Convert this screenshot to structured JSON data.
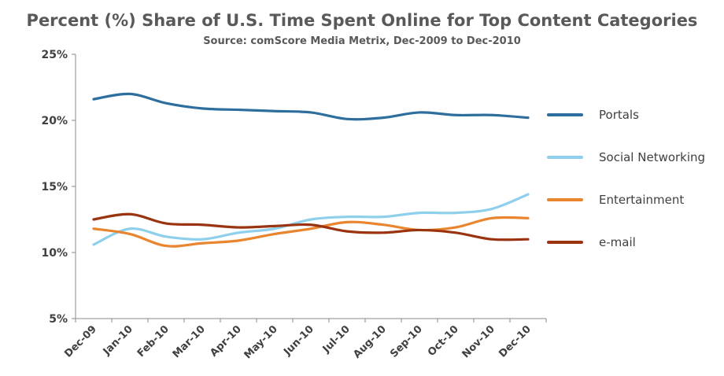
{
  "chart_data": {
    "type": "line",
    "title": "Percent (%) Share of U.S. Time Spent Online for Top Content Categories",
    "subtitle": "Source: comScore Media Metrix, Dec-2009 to Dec-2010",
    "xlabel": "",
    "ylabel": "",
    "categories": [
      "Dec-09",
      "Jan-10",
      "Feb-10",
      "Mar-10",
      "Apr-10",
      "May-10",
      "Jun-10",
      "Jul-10",
      "Aug-10",
      "Sep-10",
      "Oct-10",
      "Nov-10",
      "Dec-10"
    ],
    "ylim": [
      5,
      25
    ],
    "yticks": [
      "5%",
      "10%",
      "15%",
      "20%",
      "25%"
    ],
    "grid": false,
    "legend_position": "right",
    "series": [
      {
        "name": "Portals",
        "color": "#2e6e9e",
        "values": [
          21.6,
          22.0,
          21.3,
          20.9,
          20.8,
          20.7,
          20.6,
          20.1,
          20.2,
          20.6,
          20.4,
          20.4,
          20.2
        ]
      },
      {
        "name": "Social Networking",
        "color": "#8ecfec",
        "values": [
          10.6,
          11.8,
          11.2,
          11.0,
          11.5,
          11.8,
          12.5,
          12.7,
          12.7,
          13.0,
          13.0,
          13.3,
          14.4
        ]
      },
      {
        "name": "Entertainment",
        "color": "#e8852e",
        "values": [
          11.8,
          11.4,
          10.5,
          10.7,
          10.9,
          11.4,
          11.8,
          12.3,
          12.1,
          11.7,
          11.9,
          12.6,
          12.6
        ]
      },
      {
        "name": "e-mail",
        "color": "#9a3410",
        "values": [
          12.5,
          12.9,
          12.2,
          12.1,
          11.9,
          12.0,
          12.1,
          11.6,
          11.5,
          11.7,
          11.5,
          11.0,
          11.0
        ]
      }
    ]
  }
}
